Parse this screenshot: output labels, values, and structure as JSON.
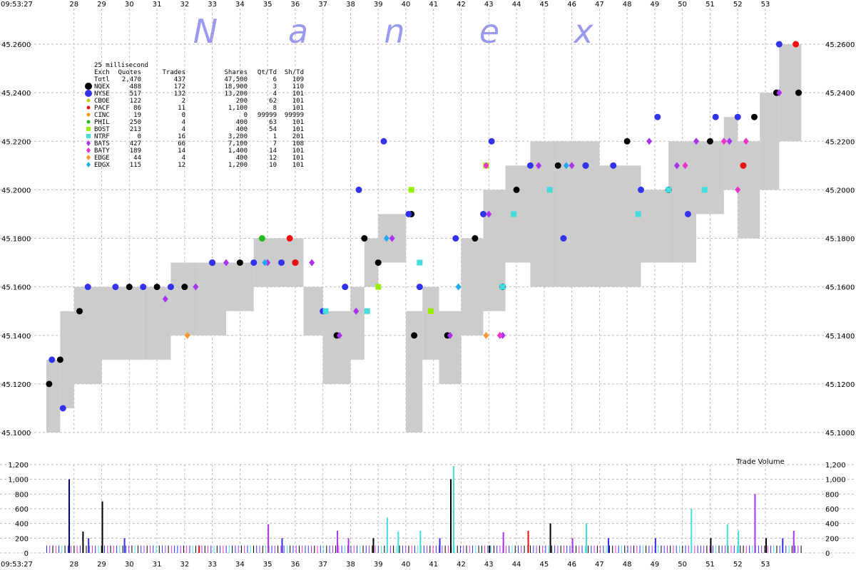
{
  "chart_data": {
    "type": "scatter",
    "title": "",
    "watermark_letters": [
      "N",
      "a",
      "n",
      "e",
      "x"
    ],
    "time_start_label": "09:53:27",
    "x_tick_labels": [
      "28",
      "29",
      "30",
      "31",
      "32",
      "33",
      "34",
      "35",
      "36",
      "37",
      "38",
      "39",
      "40",
      "41",
      "42",
      "43",
      "44",
      "45",
      "46",
      "47",
      "48",
      "49",
      "50",
      "51",
      "52",
      "53"
    ],
    "x_range_seconds": [
      27.0,
      54.6
    ],
    "price_axis": {
      "ylim": [
        45.1,
        45.265
      ],
      "tick_values": [
        45.1,
        45.12,
        45.14,
        45.16,
        45.18,
        45.2,
        45.22,
        45.24,
        45.26
      ],
      "tick_labels": [
        "45.1000",
        "45.1200",
        "45.1400",
        "45.1600",
        "45.1800",
        "45.2000",
        "45.2200",
        "45.2400",
        "45.2600"
      ]
    },
    "volume_axis": {
      "label": "Trade Volume",
      "ylim": [
        0,
        1200
      ],
      "tick_values": [
        0,
        200,
        400,
        600,
        800,
        1000,
        1200
      ],
      "tick_labels": [
        "0",
        "200",
        "400",
        "600",
        "800",
        "1,000",
        "1,200"
      ]
    },
    "legend": {
      "placement": "top-left",
      "title": "25 millisecond",
      "headers": [
        "Exch",
        "Quotes",
        "Trades",
        "Shares",
        "Qt/Td",
        "Sh/Td"
      ],
      "rows": [
        {
          "exch": "Totl",
          "quotes": "2,470",
          "trades": "437",
          "shares": "47,500",
          "qt_td": "6",
          "sh_td": "109",
          "marker": "none",
          "color": ""
        },
        {
          "exch": "NQEX",
          "quotes": "488",
          "trades": "172",
          "shares": "18,900",
          "qt_td": "3",
          "sh_td": "110",
          "marker": "circle",
          "color": "#000000"
        },
        {
          "exch": "NYSE",
          "quotes": "517",
          "trades": "132",
          "shares": "13,200",
          "qt_td": "4",
          "sh_td": "101",
          "marker": "circle",
          "color": "#3333ee"
        },
        {
          "exch": "CBOE",
          "quotes": "122",
          "trades": "2",
          "shares": "200",
          "qt_td": "62",
          "sh_td": "101",
          "marker": "dot",
          "color": "#cccc00"
        },
        {
          "exch": "PACF",
          "quotes": "86",
          "trades": "11",
          "shares": "1,100",
          "qt_td": "8",
          "sh_td": "101",
          "marker": "dot",
          "color": "#ee1111"
        },
        {
          "exch": "CINC",
          "quotes": "19",
          "trades": "0",
          "shares": "0",
          "qt_td": "99999",
          "sh_td": "99999",
          "marker": "dot",
          "color": "#ff9900"
        },
        {
          "exch": "PHIL",
          "quotes": "250",
          "trades": "4",
          "shares": "400",
          "qt_td": "63",
          "sh_td": "101",
          "marker": "dot",
          "color": "#22bb22"
        },
        {
          "exch": "BOST",
          "quotes": "213",
          "trades": "4",
          "shares": "400",
          "qt_td": "54",
          "sh_td": "101",
          "marker": "square",
          "color": "#99ee00"
        },
        {
          "exch": "NTRF",
          "quotes": "0",
          "trades": "16",
          "shares": "3,200",
          "qt_td": "1",
          "sh_td": "201",
          "marker": "square",
          "color": "#44dddd"
        },
        {
          "exch": "BATS",
          "quotes": "427",
          "trades": "66",
          "shares": "7,100",
          "qt_td": "7",
          "sh_td": "108",
          "marker": "diamond",
          "color": "#aa33ee"
        },
        {
          "exch": "BATY",
          "quotes": "189",
          "trades": "14",
          "shares": "1,400",
          "qt_td": "14",
          "sh_td": "101",
          "marker": "diamond",
          "color": "#ee33cc"
        },
        {
          "exch": "EDGE",
          "quotes": "44",
          "trades": "4",
          "shares": "400",
          "qt_td": "12",
          "sh_td": "101",
          "marker": "diamond",
          "color": "#ff9933"
        },
        {
          "exch": "EDGX",
          "quotes": "115",
          "trades": "12",
          "shares": "1,200",
          "qt_td": "10",
          "sh_td": "101",
          "marker": "diamond",
          "color": "#22aaee"
        }
      ]
    },
    "spread_bands": [
      [
        27.0,
        27.5,
        45.1,
        45.13
      ],
      [
        27.5,
        28.0,
        45.11,
        45.15
      ],
      [
        28.0,
        29.0,
        45.12,
        45.16
      ],
      [
        29.0,
        30.5,
        45.13,
        45.16
      ],
      [
        30.5,
        31.5,
        45.13,
        45.16
      ],
      [
        31.5,
        32.5,
        45.14,
        45.17
      ],
      [
        32.5,
        33.5,
        45.14,
        45.17
      ],
      [
        33.5,
        34.5,
        45.15,
        45.17
      ],
      [
        34.5,
        35.5,
        45.16,
        45.18
      ],
      [
        35.5,
        36.3,
        45.16,
        45.18
      ],
      [
        36.3,
        37.0,
        45.14,
        45.16
      ],
      [
        37.0,
        38.0,
        45.12,
        45.15
      ],
      [
        38.0,
        38.5,
        45.13,
        45.16
      ],
      [
        38.5,
        39.0,
        45.16,
        45.18
      ],
      [
        39.0,
        40.0,
        45.17,
        45.19
      ],
      [
        40.0,
        40.6,
        45.1,
        45.15
      ],
      [
        40.6,
        41.2,
        45.13,
        45.16
      ],
      [
        41.2,
        42.0,
        45.12,
        45.15
      ],
      [
        42.0,
        42.8,
        45.14,
        45.18
      ],
      [
        42.8,
        43.6,
        45.15,
        45.2
      ],
      [
        43.6,
        44.5,
        45.17,
        45.21
      ],
      [
        44.5,
        45.5,
        45.16,
        45.22
      ],
      [
        45.5,
        47.0,
        45.16,
        45.22
      ],
      [
        47.0,
        48.5,
        45.16,
        45.21
      ],
      [
        48.5,
        49.5,
        45.17,
        45.2
      ],
      [
        49.5,
        50.5,
        45.17,
        45.22
      ],
      [
        50.5,
        51.5,
        45.19,
        45.22
      ],
      [
        51.5,
        52.0,
        45.2,
        45.23
      ],
      [
        52.0,
        52.8,
        45.18,
        45.22
      ],
      [
        52.8,
        53.5,
        45.2,
        45.24
      ],
      [
        53.5,
        54.3,
        45.22,
        45.26
      ]
    ],
    "quote_series": [
      {
        "name": "NQEX",
        "color": "#000000",
        "marker": "circle",
        "points": [
          [
            27.1,
            45.12
          ],
          [
            27.5,
            45.13
          ],
          [
            28.2,
            45.15
          ],
          [
            30.0,
            45.16
          ],
          [
            31.0,
            45.16
          ],
          [
            32.0,
            45.16
          ],
          [
            33.0,
            45.17
          ],
          [
            34.0,
            45.17
          ],
          [
            36.0,
            45.17
          ],
          [
            37.5,
            45.14
          ],
          [
            38.5,
            45.18
          ],
          [
            39.0,
            45.17
          ],
          [
            40.2,
            45.19
          ],
          [
            40.3,
            45.14
          ],
          [
            41.5,
            45.14
          ],
          [
            42.5,
            45.18
          ],
          [
            43.5,
            45.16
          ],
          [
            44.0,
            45.2
          ],
          [
            45.5,
            45.21
          ],
          [
            46.5,
            45.21
          ],
          [
            48.0,
            45.22
          ],
          [
            49.5,
            45.2
          ],
          [
            51.0,
            45.22
          ],
          [
            52.6,
            45.23
          ],
          [
            53.4,
            45.24
          ],
          [
            54.2,
            45.24
          ]
        ]
      },
      {
        "name": "NYSE",
        "color": "#3333ee",
        "marker": "circle",
        "points": [
          [
            27.2,
            45.13
          ],
          [
            27.6,
            45.11
          ],
          [
            28.5,
            45.16
          ],
          [
            29.5,
            45.16
          ],
          [
            30.5,
            45.16
          ],
          [
            31.5,
            45.16
          ],
          [
            33.0,
            45.17
          ],
          [
            34.5,
            45.17
          ],
          [
            35.5,
            45.17
          ],
          [
            37.0,
            45.15
          ],
          [
            37.8,
            45.16
          ],
          [
            38.3,
            45.2
          ],
          [
            39.2,
            45.22
          ],
          [
            40.1,
            45.19
          ],
          [
            40.5,
            45.16
          ],
          [
            41.8,
            45.18
          ],
          [
            42.8,
            45.19
          ],
          [
            43.1,
            45.22
          ],
          [
            44.5,
            45.21
          ],
          [
            45.7,
            45.18
          ],
          [
            46.5,
            45.21
          ],
          [
            47.5,
            45.21
          ],
          [
            48.5,
            45.2
          ],
          [
            49.1,
            45.23
          ],
          [
            50.2,
            45.19
          ],
          [
            51.2,
            45.23
          ],
          [
            52.0,
            45.23
          ],
          [
            53.5,
            45.26
          ]
        ]
      },
      {
        "name": "PACF",
        "color": "#ee1111",
        "marker": "circle",
        "points": [
          [
            35.8,
            45.18
          ],
          [
            36.0,
            45.17
          ],
          [
            52.2,
            45.21
          ],
          [
            54.1,
            45.26
          ]
        ]
      },
      {
        "name": "PHIL",
        "color": "#22bb22",
        "marker": "circle",
        "points": [
          [
            34.8,
            45.18
          ]
        ]
      },
      {
        "name": "BOST",
        "color": "#99ee00",
        "marker": "square",
        "points": [
          [
            39.0,
            45.16
          ],
          [
            40.9,
            45.15
          ],
          [
            42.9,
            45.21
          ],
          [
            40.2,
            45.2
          ]
        ]
      },
      {
        "name": "NTRF",
        "color": "#44dddd",
        "marker": "square",
        "points": [
          [
            37.1,
            45.15
          ],
          [
            38.6,
            45.15
          ],
          [
            40.5,
            45.17
          ],
          [
            43.5,
            45.16
          ],
          [
            43.9,
            45.19
          ],
          [
            45.2,
            45.2
          ],
          [
            48.4,
            45.19
          ],
          [
            49.5,
            45.2
          ],
          [
            50.8,
            45.2
          ]
        ]
      },
      {
        "name": "BATS",
        "color": "#aa33ee",
        "marker": "diamond",
        "points": [
          [
            31.3,
            45.155
          ],
          [
            32.4,
            45.16
          ],
          [
            33.5,
            45.17
          ],
          [
            35.0,
            45.17
          ],
          [
            36.6,
            45.17
          ],
          [
            37.6,
            45.14
          ],
          [
            38.2,
            45.15
          ],
          [
            39.5,
            45.18
          ],
          [
            41.6,
            45.14
          ],
          [
            43.0,
            45.19
          ],
          [
            43.5,
            45.14
          ],
          [
            44.8,
            45.21
          ],
          [
            46.0,
            45.21
          ],
          [
            48.8,
            45.22
          ],
          [
            49.8,
            45.21
          ],
          [
            50.5,
            45.22
          ],
          [
            51.7,
            45.22
          ],
          [
            53.5,
            45.24
          ]
        ]
      },
      {
        "name": "BATY",
        "color": "#ee33cc",
        "marker": "diamond",
        "points": [
          [
            42.9,
            45.21
          ],
          [
            43.4,
            45.14
          ],
          [
            50.1,
            45.21
          ],
          [
            51.5,
            45.22
          ],
          [
            52.3,
            45.22
          ],
          [
            52.0,
            45.2
          ]
        ]
      },
      {
        "name": "EDGE",
        "color": "#ff9933",
        "marker": "diamond",
        "points": [
          [
            32.1,
            45.14
          ],
          [
            42.9,
            45.14
          ]
        ]
      },
      {
        "name": "EDGX",
        "color": "#22aaee",
        "marker": "diamond",
        "points": [
          [
            34.9,
            45.17
          ],
          [
            39.3,
            45.18
          ],
          [
            41.9,
            45.16
          ],
          [
            45.8,
            45.21
          ]
        ]
      }
    ],
    "volume_bars": [
      [
        27.8,
        1000,
        "#000066"
      ],
      [
        28.3,
        290,
        "#000000"
      ],
      [
        28.5,
        200,
        "#3333ee"
      ],
      [
        29.0,
        700,
        "#000000"
      ],
      [
        29.8,
        200,
        "#3333ee"
      ],
      [
        32.5,
        100,
        "#ee1111"
      ],
      [
        35.0,
        390,
        "#aa33ee"
      ],
      [
        35.5,
        200,
        "#3333ee"
      ],
      [
        37.5,
        300,
        "#aa33ee"
      ],
      [
        37.9,
        200,
        "#aa33ee"
      ],
      [
        38.8,
        200,
        "#000000"
      ],
      [
        39.3,
        480,
        "#44dddd"
      ],
      [
        39.7,
        290,
        "#44dddd"
      ],
      [
        40.5,
        300,
        "#44dddd"
      ],
      [
        41.2,
        200,
        "#3333ee"
      ],
      [
        41.6,
        1000,
        "#000000"
      ],
      [
        41.7,
        1180,
        "#44dddd"
      ],
      [
        43.0,
        100,
        "#000000"
      ],
      [
        43.5,
        280,
        "#aa33ee"
      ],
      [
        44.4,
        300,
        "#ee1111"
      ],
      [
        45.2,
        400,
        "#000000"
      ],
      [
        46.0,
        200,
        "#aa33ee"
      ],
      [
        46.5,
        400,
        "#44dddd"
      ],
      [
        47.3,
        200,
        "#3333ee"
      ],
      [
        49.0,
        200,
        "#3333ee"
      ],
      [
        50.3,
        600,
        "#44dddd"
      ],
      [
        51.0,
        200,
        "#000000"
      ],
      [
        51.6,
        390,
        "#44dddd"
      ],
      [
        52.0,
        300,
        "#44dddd"
      ],
      [
        52.6,
        800,
        "#aa33ee"
      ],
      [
        53.0,
        200,
        "#000000"
      ],
      [
        54.0,
        300,
        "#aa33ee"
      ],
      [
        53.6,
        200,
        "#3333ee"
      ]
    ]
  }
}
